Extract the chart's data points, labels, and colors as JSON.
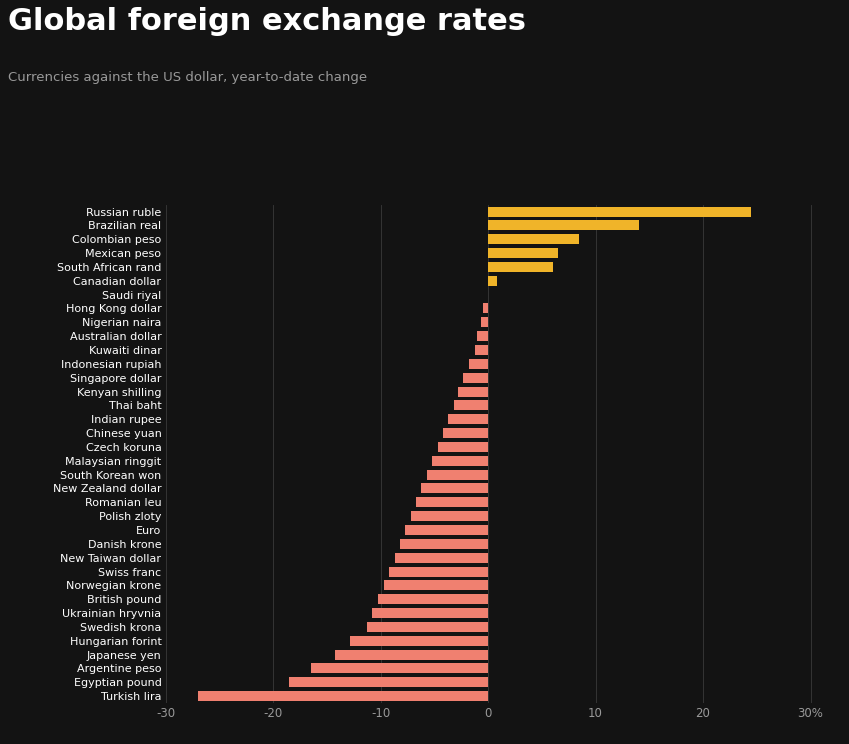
{
  "title": "Global foreign exchange rates",
  "subtitle": "Currencies against the US dollar, year-to-date change",
  "background_color": "#131313",
  "text_color": "#ffffff",
  "categories": [
    "Russian ruble",
    "Brazilian real",
    "Colombian peso",
    "Mexican peso",
    "South African rand",
    "Canadian dollar",
    "Saudi riyal",
    "Hong Kong dollar",
    "Nigerian naira",
    "Australian dollar",
    "Kuwaiti dinar",
    "Indonesian rupiah",
    "Singapore dollar",
    "Kenyan shilling",
    "Thai baht",
    "Indian rupee",
    "Chinese yuan",
    "Czech koruna",
    "Malaysian ringgit",
    "South Korean won",
    "New Zealand dollar",
    "Romanian leu",
    "Polish zloty",
    "Euro",
    "Danish krone",
    "New Taiwan dollar",
    "Swiss franc",
    "Norwegian krone",
    "British pound",
    "Ukrainian hryvnia",
    "Swedish krona",
    "Hungarian forint",
    "Japanese yen",
    "Argentine peso",
    "Egyptian pound",
    "Turkish lira"
  ],
  "values": [
    24.5,
    14.0,
    8.5,
    6.5,
    6.0,
    0.8,
    0.0,
    -0.5,
    -0.7,
    -1.0,
    -1.2,
    -1.8,
    -2.3,
    -2.8,
    -3.2,
    -3.7,
    -4.2,
    -4.7,
    -5.2,
    -5.7,
    -6.2,
    -6.7,
    -7.2,
    -7.7,
    -8.2,
    -8.7,
    -9.2,
    -9.7,
    -10.2,
    -10.8,
    -11.3,
    -12.8,
    -14.2,
    -16.5,
    -18.5,
    -27.0
  ],
  "positive_color": "#f0b429",
  "negative_color": "#f08070",
  "gridline_color": "#3a3a3a",
  "axis_color": "#999999",
  "xtick_labels": [
    "-30",
    "-20",
    "-10",
    "0",
    "10",
    "20",
    "30%"
  ],
  "xtick_values": [
    -30,
    -20,
    -10,
    0,
    10,
    20,
    30
  ],
  "xlim": [
    -30,
    32
  ]
}
